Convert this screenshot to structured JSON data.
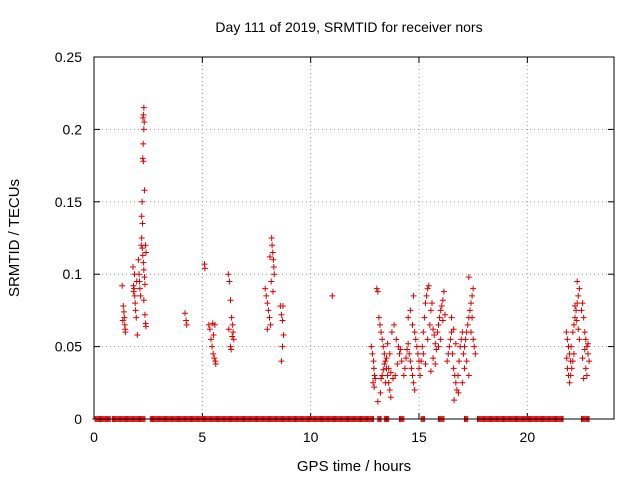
{
  "chart_data": {
    "type": "scatter",
    "title": "Day 111 of 2019, SRMTID for receiver nors",
    "xlabel": "GPS time / hours",
    "ylabel": "SRMTID / TECUs",
    "xlim": [
      0,
      24
    ],
    "ylim": [
      0,
      0.25
    ],
    "grid": true,
    "x_ticks": [
      0,
      5,
      10,
      15,
      20
    ],
    "y_ticks": [
      0,
      0.05,
      0.1,
      0.15,
      0.2,
      0.25
    ],
    "x_tick_labels": [
      "0",
      "5",
      "10",
      "15",
      "20"
    ],
    "y_tick_labels": [
      "0",
      "0.05",
      "0.1",
      "0.15",
      "0.2",
      "0.25"
    ],
    "marker": "plus",
    "colors": {
      "series": "#dd0000",
      "grid": "#999999"
    },
    "series": [
      {
        "points": [
          [
            1.3,
            0.092
          ],
          [
            1.35,
            0.078
          ],
          [
            1.4,
            0.07
          ],
          [
            1.42,
            0.065
          ],
          [
            1.45,
            0.06
          ],
          [
            1.38,
            0.074
          ],
          [
            1.33,
            0.068
          ],
          [
            1.44,
            0.062
          ],
          [
            1.8,
            0.105
          ],
          [
            1.82,
            0.092
          ],
          [
            1.85,
            0.09
          ],
          [
            1.88,
            0.085
          ],
          [
            1.9,
            0.08
          ],
          [
            1.92,
            0.075
          ],
          [
            1.87,
            0.1
          ],
          [
            1.83,
            0.088
          ],
          [
            1.95,
            0.07
          ],
          [
            2.0,
            0.058
          ],
          [
            1.97,
            0.095
          ],
          [
            2.05,
            0.11
          ],
          [
            2.08,
            0.1
          ],
          [
            2.1,
            0.095
          ],
          [
            2.12,
            0.09
          ],
          [
            2.15,
            0.085
          ],
          [
            2.18,
            0.12
          ],
          [
            2.2,
            0.14
          ],
          [
            2.22,
            0.15
          ],
          [
            2.25,
            0.18
          ],
          [
            2.27,
            0.19
          ],
          [
            2.3,
            0.2
          ],
          [
            2.32,
            0.205
          ],
          [
            2.28,
            0.21
          ],
          [
            2.3,
            0.215
          ],
          [
            2.26,
            0.208
          ],
          [
            2.2,
            0.125
          ],
          [
            2.23,
            0.118
          ],
          [
            2.25,
            0.113
          ],
          [
            2.28,
            0.108
          ],
          [
            2.3,
            0.103
          ],
          [
            2.33,
            0.098
          ],
          [
            2.35,
            0.093
          ],
          [
            2.38,
            0.12
          ],
          [
            2.4,
            0.115
          ],
          [
            2.3,
            0.082
          ],
          [
            2.35,
            0.072
          ],
          [
            2.38,
            0.066
          ],
          [
            2.4,
            0.064
          ],
          [
            2.33,
            0.158
          ],
          [
            2.28,
            0.178
          ],
          [
            2.24,
            0.135
          ],
          [
            4.2,
            0.073
          ],
          [
            4.25,
            0.068
          ],
          [
            4.28,
            0.065
          ],
          [
            5.1,
            0.107
          ],
          [
            5.12,
            0.104
          ],
          [
            5.3,
            0.065
          ],
          [
            5.35,
            0.062
          ],
          [
            5.4,
            0.055
          ],
          [
            5.45,
            0.05
          ],
          [
            5.5,
            0.045
          ],
          [
            5.55,
            0.042
          ],
          [
            5.6,
            0.04
          ],
          [
            5.62,
            0.038
          ],
          [
            5.48,
            0.066
          ],
          [
            5.58,
            0.065
          ],
          [
            5.52,
            0.058
          ],
          [
            6.2,
            0.1
          ],
          [
            6.25,
            0.095
          ],
          [
            6.3,
            0.082
          ],
          [
            6.35,
            0.07
          ],
          [
            6.4,
            0.065
          ],
          [
            6.42,
            0.06
          ],
          [
            6.45,
            0.055
          ],
          [
            6.3,
            0.05
          ],
          [
            6.38,
            0.057
          ],
          [
            6.22,
            0.062
          ],
          [
            6.33,
            0.048
          ],
          [
            7.9,
            0.09
          ],
          [
            7.95,
            0.085
          ],
          [
            8.0,
            0.08
          ],
          [
            8.05,
            0.075
          ],
          [
            8.1,
            0.07
          ],
          [
            8.15,
            0.065
          ],
          [
            8.0,
            0.062
          ],
          [
            8.2,
            0.125
          ],
          [
            8.22,
            0.12
          ],
          [
            8.25,
            0.115
          ],
          [
            8.28,
            0.11
          ],
          [
            8.3,
            0.105
          ],
          [
            8.32,
            0.1
          ],
          [
            8.12,
            0.112
          ],
          [
            8.18,
            0.095
          ],
          [
            8.26,
            0.088
          ],
          [
            8.6,
            0.078
          ],
          [
            8.65,
            0.072
          ],
          [
            8.7,
            0.068
          ],
          [
            8.75,
            0.058
          ],
          [
            8.7,
            0.05
          ],
          [
            8.65,
            0.04
          ],
          [
            8.72,
            0.078
          ],
          [
            11.0,
            0.085
          ],
          [
            12.8,
            0.05
          ],
          [
            12.85,
            0.045
          ],
          [
            12.9,
            0.04
          ],
          [
            12.92,
            0.035
          ],
          [
            12.95,
            0.03
          ],
          [
            12.98,
            0.028
          ],
          [
            12.88,
            0.025
          ],
          [
            12.93,
            0.022
          ],
          [
            13.05,
            0.09
          ],
          [
            13.1,
            0.088
          ],
          [
            13.15,
            0.07
          ],
          [
            13.2,
            0.065
          ],
          [
            13.25,
            0.06
          ],
          [
            13.3,
            0.055
          ],
          [
            13.35,
            0.05
          ],
          [
            13.4,
            0.045
          ],
          [
            13.45,
            0.04
          ],
          [
            13.5,
            0.035
          ],
          [
            13.55,
            0.03
          ],
          [
            13.6,
            0.025
          ],
          [
            13.65,
            0.02
          ],
          [
            13.7,
            0.015
          ],
          [
            13.1,
            0.012
          ],
          [
            13.22,
            0.018
          ],
          [
            13.3,
            0.03
          ],
          [
            13.4,
            0.038
          ],
          [
            13.5,
            0.042
          ],
          [
            13.6,
            0.035
          ],
          [
            13.7,
            0.032
          ],
          [
            13.8,
            0.028
          ],
          [
            13.9,
            0.03
          ],
          [
            14.0,
            0.038
          ],
          [
            14.1,
            0.045
          ],
          [
            14.2,
            0.04
          ],
          [
            13.75,
            0.06
          ],
          [
            13.85,
            0.065
          ],
          [
            13.95,
            0.055
          ],
          [
            14.05,
            0.05
          ],
          [
            14.15,
            0.048
          ],
          [
            13.65,
            0.045
          ],
          [
            13.55,
            0.052
          ],
          [
            13.45,
            0.025
          ],
          [
            13.35,
            0.034
          ],
          [
            13.25,
            0.028
          ],
          [
            14.3,
            0.03
          ],
          [
            14.35,
            0.035
          ],
          [
            14.4,
            0.042
          ],
          [
            14.45,
            0.048
          ],
          [
            14.5,
            0.052
          ],
          [
            14.55,
            0.045
          ],
          [
            14.6,
            0.04
          ],
          [
            14.65,
            0.035
          ],
          [
            14.7,
            0.03
          ],
          [
            14.75,
            0.025
          ],
          [
            14.8,
            0.02
          ],
          [
            14.5,
            0.07
          ],
          [
            14.6,
            0.075
          ],
          [
            14.7,
            0.065
          ],
          [
            14.8,
            0.06
          ],
          [
            14.75,
            0.085
          ],
          [
            14.85,
            0.055
          ],
          [
            14.9,
            0.05
          ],
          [
            14.95,
            0.045
          ],
          [
            15.0,
            0.04
          ],
          [
            15.0,
            0.035
          ],
          [
            15.05,
            0.03
          ],
          [
            15.1,
            0.04
          ],
          [
            15.15,
            0.05
          ],
          [
            15.2,
            0.06
          ],
          [
            15.25,
            0.07
          ],
          [
            15.3,
            0.08
          ],
          [
            15.35,
            0.085
          ],
          [
            15.4,
            0.09
          ],
          [
            15.45,
            0.092
          ],
          [
            15.2,
            0.045
          ],
          [
            15.3,
            0.038
          ],
          [
            15.4,
            0.055
          ],
          [
            15.5,
            0.065
          ],
          [
            15.55,
            0.075
          ],
          [
            15.6,
            0.08
          ],
          [
            15.65,
            0.062
          ],
          [
            15.7,
            0.058
          ],
          [
            15.75,
            0.052
          ],
          [
            15.8,
            0.048
          ],
          [
            15.85,
            0.06
          ],
          [
            15.9,
            0.065
          ],
          [
            15.95,
            0.07
          ],
          [
            16.0,
            0.075
          ],
          [
            16.05,
            0.078
          ],
          [
            16.1,
            0.082
          ],
          [
            16.15,
            0.088
          ],
          [
            15.9,
            0.05
          ],
          [
            16.0,
            0.055
          ],
          [
            16.1,
            0.068
          ],
          [
            16.2,
            0.072
          ],
          [
            15.55,
            0.033
          ],
          [
            15.65,
            0.042
          ],
          [
            15.75,
            0.038
          ],
          [
            16.3,
            0.04
          ],
          [
            16.35,
            0.045
          ],
          [
            16.4,
            0.05
          ],
          [
            16.45,
            0.055
          ],
          [
            16.5,
            0.06
          ],
          [
            16.55,
            0.045
          ],
          [
            16.6,
            0.035
          ],
          [
            16.65,
            0.03
          ],
          [
            16.7,
            0.025
          ],
          [
            16.75,
            0.02
          ],
          [
            16.8,
            0.03
          ],
          [
            16.85,
            0.04
          ],
          [
            16.9,
            0.05
          ],
          [
            16.95,
            0.055
          ],
          [
            17.0,
            0.06
          ],
          [
            16.5,
            0.07
          ],
          [
            16.6,
            0.062
          ],
          [
            16.7,
            0.052
          ],
          [
            16.62,
            0.013
          ],
          [
            16.82,
            0.018
          ],
          [
            17.05,
            0.045
          ],
          [
            17.1,
            0.05
          ],
          [
            17.15,
            0.055
          ],
          [
            17.2,
            0.06
          ],
          [
            17.25,
            0.065
          ],
          [
            17.3,
            0.07
          ],
          [
            17.35,
            0.075
          ],
          [
            17.4,
            0.08
          ],
          [
            17.45,
            0.085
          ],
          [
            17.5,
            0.09
          ],
          [
            17.3,
            0.098
          ],
          [
            17.4,
            0.06
          ],
          [
            17.5,
            0.055
          ],
          [
            17.55,
            0.05
          ],
          [
            17.6,
            0.045
          ],
          [
            17.2,
            0.04
          ],
          [
            17.1,
            0.035
          ],
          [
            17.3,
            0.03
          ],
          [
            17.0,
            0.025
          ],
          [
            17.45,
            0.07
          ],
          [
            21.8,
            0.06
          ],
          [
            21.85,
            0.055
          ],
          [
            21.9,
            0.05
          ],
          [
            21.95,
            0.045
          ],
          [
            22.0,
            0.04
          ],
          [
            21.85,
            0.035
          ],
          [
            21.9,
            0.03
          ],
          [
            21.95,
            0.025
          ],
          [
            22.0,
            0.03
          ],
          [
            22.05,
            0.035
          ],
          [
            22.1,
            0.04
          ],
          [
            22.15,
            0.045
          ],
          [
            21.82,
            0.042
          ],
          [
            22.02,
            0.05
          ],
          [
            22.1,
            0.06
          ],
          [
            22.15,
            0.065
          ],
          [
            22.2,
            0.07
          ],
          [
            22.25,
            0.075
          ],
          [
            22.3,
            0.08
          ],
          [
            22.35,
            0.085
          ],
          [
            22.4,
            0.09
          ],
          [
            22.3,
            0.095
          ],
          [
            22.2,
            0.078
          ],
          [
            22.28,
            0.068
          ],
          [
            22.35,
            0.062
          ],
          [
            22.4,
            0.055
          ],
          [
            22.5,
            0.075
          ],
          [
            22.55,
            0.08
          ],
          [
            22.6,
            0.07
          ],
          [
            22.65,
            0.06
          ],
          [
            22.7,
            0.055
          ],
          [
            22.75,
            0.05
          ],
          [
            22.8,
            0.045
          ],
          [
            22.85,
            0.04
          ],
          [
            22.7,
            0.035
          ],
          [
            22.75,
            0.03
          ],
          [
            22.6,
            0.028
          ],
          [
            22.55,
            0.042
          ],
          [
            22.65,
            0.048
          ],
          [
            22.8,
            0.052
          ]
        ],
        "zero_ranges": [
          [
            0.05,
            0.35
          ],
          [
            0.4,
            0.75
          ],
          [
            0.85,
            1.15
          ],
          [
            1.2,
            1.55
          ],
          [
            1.6,
            1.95
          ],
          [
            2.0,
            2.35
          ],
          [
            2.6,
            12.9
          ],
          [
            13.1,
            13.25
          ],
          [
            13.4,
            13.6
          ],
          [
            14.1,
            14.3
          ],
          [
            15.1,
            15.25
          ],
          [
            15.9,
            16.15
          ],
          [
            17.1,
            17.25
          ],
          [
            17.7,
            21.65
          ],
          [
            22.5,
            22.85
          ]
        ]
      }
    ]
  }
}
